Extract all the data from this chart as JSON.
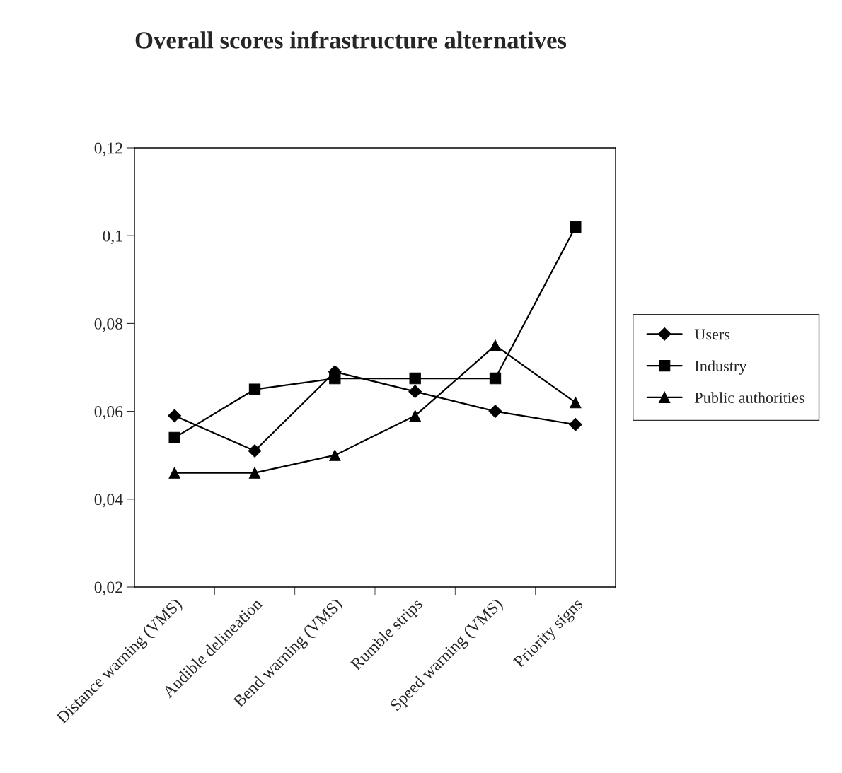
{
  "chart_data": {
    "type": "line",
    "title": "Overall scores infrastructure alternatives",
    "categories": [
      "Distance warning (VMS)",
      "Audible delineation",
      "Bend warning (VMS)",
      "Rumble strips",
      "Speed warning (VMS)",
      "Priority signs"
    ],
    "series": [
      {
        "name": "Users",
        "color": "#000000",
        "marker": "diamond",
        "values": [
          0.059,
          0.051,
          0.069,
          0.0645,
          0.06,
          0.057
        ]
      },
      {
        "name": "Industry",
        "color": "#000000",
        "marker": "square",
        "values": [
          0.054,
          0.065,
          0.0675,
          0.0675,
          0.0675,
          0.102
        ]
      },
      {
        "name": "Public authorities",
        "color": "#000000",
        "marker": "triangle",
        "values": [
          0.046,
          0.046,
          0.05,
          0.059,
          0.075,
          0.062
        ]
      }
    ],
    "ylim": [
      0.02,
      0.12
    ],
    "yticks": [
      {
        "value": 0.02,
        "label": "0,02"
      },
      {
        "value": 0.04,
        "label": "0,04"
      },
      {
        "value": 0.06,
        "label": "0,06"
      },
      {
        "value": 0.08,
        "label": "0,08"
      },
      {
        "value": 0.1,
        "label": "0,1"
      },
      {
        "value": 0.12,
        "label": "0,12"
      }
    ],
    "grid": false,
    "legend": "right",
    "line_style": "solid"
  }
}
